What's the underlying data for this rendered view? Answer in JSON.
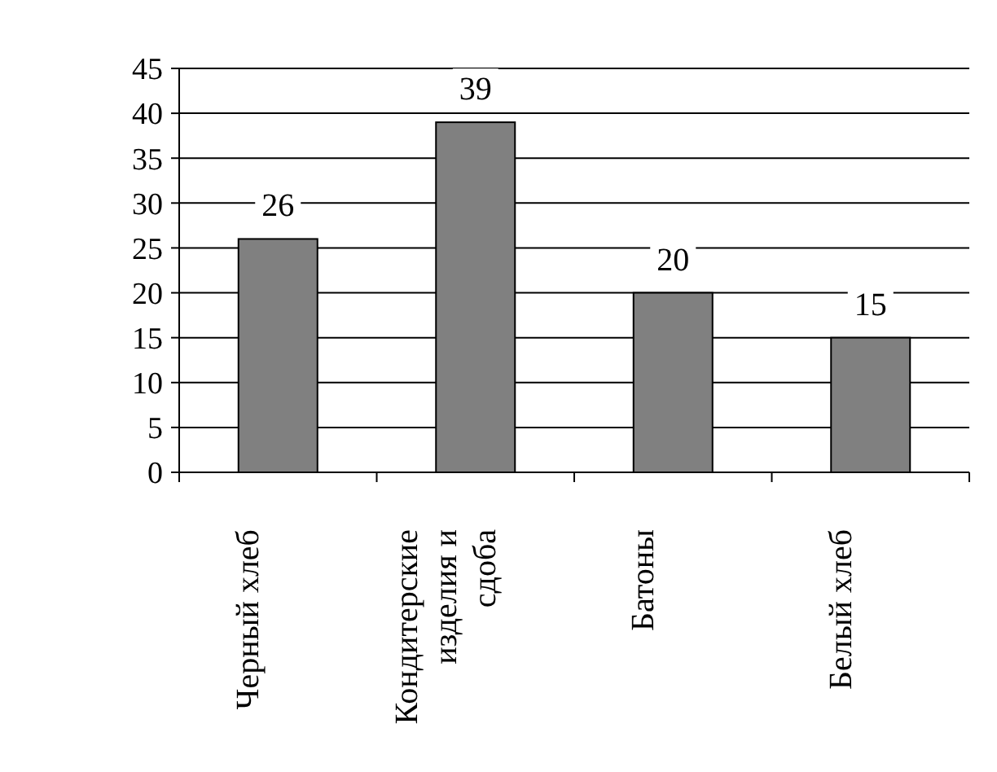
{
  "chart_data": {
    "type": "bar",
    "categories": [
      "Черный хлеб",
      "Кондитерские изделия и сдоба",
      "Батоны",
      "Белый хлеб"
    ],
    "values": [
      26,
      39,
      20,
      15
    ],
    "color": "#808080",
    "ylim": [
      0,
      45
    ],
    "yticks": [
      0,
      5,
      10,
      15,
      20,
      25,
      30,
      35,
      40,
      45
    ],
    "grid": "y",
    "data_labels": true
  }
}
